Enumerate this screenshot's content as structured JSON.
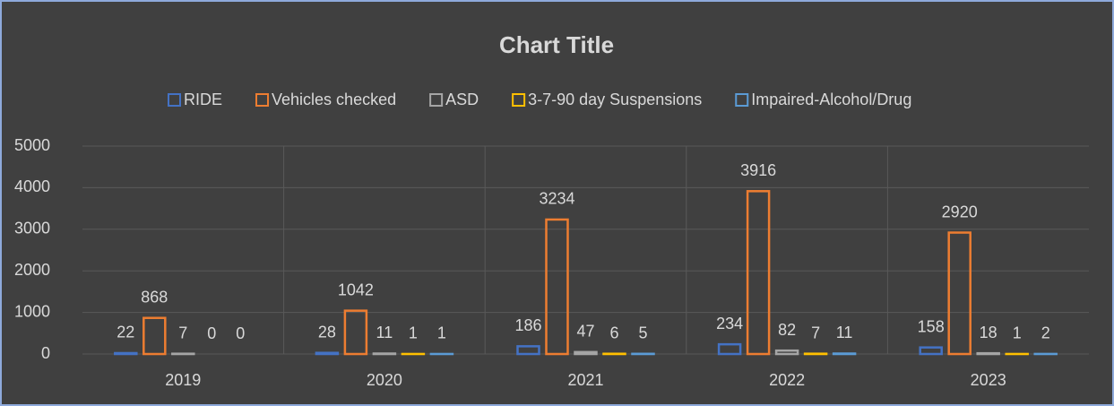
{
  "chart_data": {
    "type": "bar",
    "title": "Chart Title",
    "categories": [
      "2019",
      "2020",
      "2021",
      "2022",
      "2023"
    ],
    "series": [
      {
        "name": "RIDE",
        "color": "#4472c4",
        "values": [
          22,
          28,
          186,
          234,
          158
        ]
      },
      {
        "name": "Vehicles checked",
        "color": "#ed7d31",
        "values": [
          868,
          1042,
          3234,
          3916,
          2920
        ]
      },
      {
        "name": "ASD",
        "color": "#a5a5a5",
        "values": [
          7,
          11,
          47,
          82,
          18
        ]
      },
      {
        "name": "3-7-90 day Suspensions",
        "color": "#ffc000",
        "values": [
          0,
          1,
          6,
          7,
          1
        ]
      },
      {
        "name": "Impaired-Alcohol/Drug",
        "color": "#5b9bd5",
        "values": [
          0,
          1,
          5,
          11,
          2
        ]
      }
    ],
    "ylim": [
      0,
      5000
    ],
    "yticks": [
      0,
      1000,
      2000,
      3000,
      4000,
      5000
    ],
    "grid": true,
    "legend": "top"
  }
}
